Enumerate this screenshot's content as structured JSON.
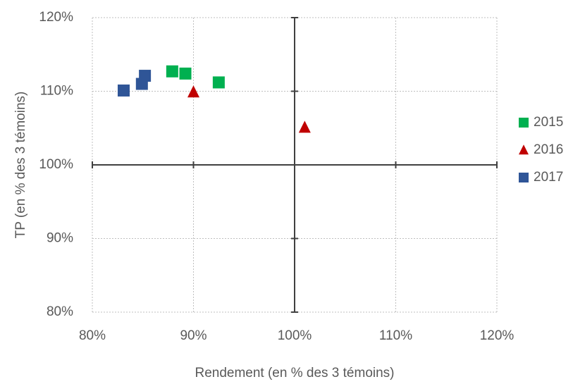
{
  "chart_data": {
    "type": "scatter",
    "x_label": "Rendement (en % des 3 témoins)",
    "y_label": "TP (en % des 3 témoins)",
    "xlim": [
      80,
      120
    ],
    "ylim": [
      80,
      120
    ],
    "xticks": [
      {
        "value": 80,
        "label": "80%"
      },
      {
        "value": 90,
        "label": "90%"
      },
      {
        "value": 100,
        "label": "100%"
      },
      {
        "value": 110,
        "label": "110%"
      },
      {
        "value": 120,
        "label": "120%"
      }
    ],
    "yticks": [
      {
        "value": 80,
        "label": "80%"
      },
      {
        "value": 90,
        "label": "90%"
      },
      {
        "value": 100,
        "label": "100%"
      },
      {
        "value": 110,
        "label": "110%"
      },
      {
        "value": 120,
        "label": "120%"
      }
    ],
    "axes_cross": {
      "x": 100,
      "y": 100
    },
    "grid": true,
    "legend": "right",
    "series": [
      {
        "name": "2015",
        "color": "#00b050",
        "marker": "square",
        "x": [
          87.9,
          89.2,
          92.5
        ],
        "values": [
          112.7,
          112.4,
          111.2
        ]
      },
      {
        "name": "2016",
        "color": "#c00000",
        "marker": "triangle",
        "x": [
          90.0,
          101.0
        ],
        "values": [
          109.9,
          105.1
        ]
      },
      {
        "name": "2017",
        "color": "#2f5597",
        "marker": "square",
        "x": [
          83.1,
          84.9,
          85.2
        ],
        "values": [
          110.1,
          111.0,
          112.1
        ]
      }
    ]
  }
}
